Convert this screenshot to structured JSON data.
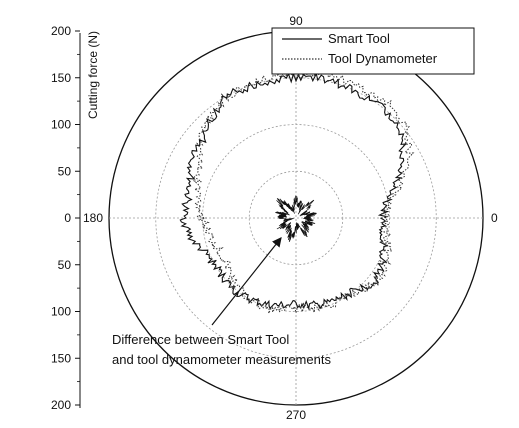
{
  "chart_data": {
    "type": "polar-line",
    "ylabel": "Cutting force (N)",
    "radial_range": [
      0,
      200
    ],
    "radial_ticks": [
      0,
      50,
      100,
      150,
      200
    ],
    "radial_tick_labels_upper": [
      "200",
      "150",
      "100",
      "50",
      "0"
    ],
    "radial_tick_labels_lower": [
      "50",
      "100",
      "150",
      "200"
    ],
    "angle_labels": [
      "90",
      "180",
      "0",
      "270"
    ],
    "grid": true,
    "legend_position": "top-right",
    "series": [
      {
        "name": "Smart Tool",
        "style": "solid",
        "color": "#111111",
        "angles_deg": [
          0,
          10,
          20,
          30,
          40,
          50,
          60,
          70,
          80,
          90,
          100,
          110,
          120,
          130,
          140,
          150,
          160,
          170,
          180,
          190,
          200,
          210,
          220,
          230,
          240,
          250,
          260,
          270,
          280,
          290,
          300,
          310,
          320,
          330,
          340,
          350
        ],
        "radius": [
          92,
          98,
          115,
          132,
          145,
          150,
          148,
          150,
          152,
          150,
          150,
          149,
          150,
          140,
          130,
          128,
          120,
          118,
          120,
          115,
          105,
          100,
          100,
          102,
          100,
          98,
          95,
          92,
          95,
          97,
          98,
          100,
          108,
          105,
          100,
          95
        ]
      },
      {
        "name": "Tool Dynamometer",
        "style": "dotted",
        "color": "#333333",
        "angles_deg": [
          0,
          10,
          20,
          30,
          40,
          50,
          60,
          70,
          80,
          90,
          100,
          110,
          120,
          130,
          140,
          150,
          160,
          170,
          180,
          190,
          200,
          210,
          220,
          230,
          240,
          250,
          260,
          270,
          280,
          290,
          300,
          310,
          320,
          330,
          340,
          350
        ],
        "radius": [
          95,
          102,
          122,
          140,
          152,
          158,
          155,
          155,
          158,
          153,
          152,
          150,
          150,
          143,
          132,
          120,
          112,
          105,
          100,
          95,
          90,
          88,
          92,
          98,
          100,
          102,
          100,
          96,
          98,
          100,
          100,
          102,
          110,
          108,
          104,
          98
        ]
      },
      {
        "name": "Difference",
        "style": "solid-fine",
        "color": "#111111",
        "angles_deg": [
          0,
          15,
          30,
          45,
          60,
          75,
          90,
          105,
          120,
          135,
          150,
          165,
          180,
          195,
          210,
          225,
          240,
          255,
          270,
          285,
          300,
          315,
          330,
          345
        ],
        "radius": [
          12,
          18,
          8,
          22,
          10,
          16,
          20,
          9,
          14,
          25,
          11,
          17,
          13,
          7,
          19,
          10,
          15,
          21,
          12,
          9,
          18,
          14,
          11,
          16
        ]
      }
    ],
    "annotation": {
      "lines": [
        "Difference between Smart Tool",
        "and tool dynamometer measurements"
      ]
    }
  }
}
